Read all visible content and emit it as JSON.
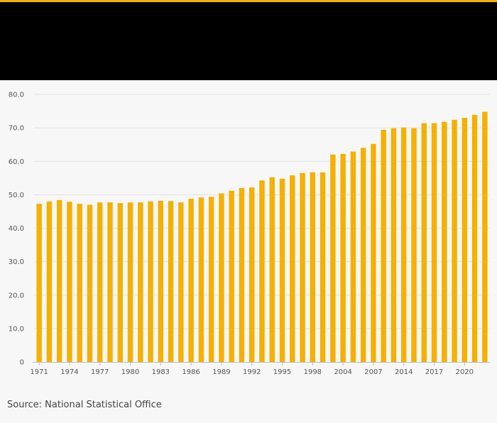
{
  "header": {
    "accent": "#f5b000",
    "background": "#000000"
  },
  "source": "Source: National Statistical Office",
  "chart_data": {
    "type": "bar",
    "title": "",
    "xlabel": "",
    "ylabel": "",
    "ylim": [
      0,
      80
    ],
    "yticks": [
      "0",
      "10.0",
      "20.0",
      "30.0",
      "40.0",
      "50.0",
      "60.0",
      "70.0",
      "80.0"
    ],
    "grid": true,
    "bar_color": "#f5b000",
    "categories": [
      "1971",
      "1972",
      "1973",
      "1974",
      "1975",
      "1976",
      "1977",
      "1978",
      "1979",
      "1980",
      "1981",
      "1982",
      "1983",
      "1984",
      "1985",
      "1986",
      "1987",
      "1988",
      "1989",
      "1990",
      "1991",
      "1992",
      "1993",
      "1994",
      "1995",
      "1996",
      "1997",
      "1998",
      "1999",
      "2000",
      "2004",
      "2005",
      "2006",
      "2007",
      "2008",
      "2009",
      "2014",
      "2015",
      "2016",
      "2017",
      "2018",
      "2019",
      "2020",
      "2021",
      "2022"
    ],
    "x_tick_labels": [
      "1971",
      "1974",
      "1977",
      "1980",
      "1983",
      "1986",
      "1989",
      "1992",
      "1995",
      "1998",
      "2004",
      "2007",
      "2014",
      "2017",
      "2020"
    ],
    "values": [
      47.3,
      48.0,
      48.4,
      47.9,
      47.3,
      47.0,
      47.7,
      47.7,
      47.5,
      47.7,
      47.7,
      48.0,
      48.2,
      48.1,
      47.7,
      48.8,
      49.2,
      49.4,
      50.4,
      51.2,
      52.0,
      52.2,
      54.3,
      55.2,
      54.8,
      55.8,
      56.5,
      56.7,
      56.7,
      62.0,
      62.2,
      62.9,
      64.0,
      65.2,
      69.4,
      69.9,
      70.1,
      69.9,
      71.4,
      71.4,
      71.8,
      72.4,
      73.0,
      73.9,
      74.8
    ]
  }
}
